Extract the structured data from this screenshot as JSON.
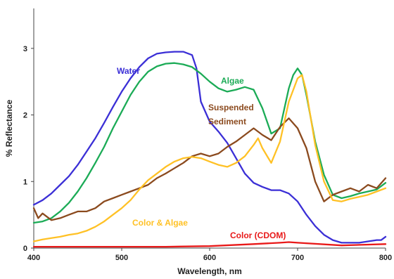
{
  "chart_data": {
    "type": "line",
    "title": "",
    "xlabel": "Wavelength, nm",
    "ylabel": "% Reflectance",
    "xlim": [
      400,
      800
    ],
    "ylim": [
      0,
      3.6
    ],
    "x_ticks": [
      400,
      500,
      600,
      700,
      800
    ],
    "y_ticks": [
      0,
      1,
      2,
      3
    ],
    "grid": false,
    "legend": "none (inline labels)",
    "series": [
      {
        "name": "Water",
        "color": "#3b2fd6",
        "x": [
          400,
          410,
          420,
          430,
          440,
          450,
          460,
          470,
          480,
          490,
          500,
          510,
          520,
          530,
          540,
          550,
          560,
          570,
          580,
          585,
          590,
          600,
          610,
          620,
          630,
          640,
          650,
          660,
          670,
          680,
          690,
          700,
          710,
          720,
          730,
          740,
          750,
          760,
          770,
          780,
          790,
          795,
          800
        ],
        "values": [
          0.65,
          0.72,
          0.82,
          0.95,
          1.08,
          1.25,
          1.45,
          1.65,
          1.88,
          2.12,
          2.35,
          2.55,
          2.72,
          2.85,
          2.92,
          2.94,
          2.95,
          2.95,
          2.9,
          2.7,
          2.2,
          1.9,
          1.75,
          1.58,
          1.35,
          1.12,
          0.98,
          0.92,
          0.87,
          0.87,
          0.82,
          0.7,
          0.5,
          0.33,
          0.2,
          0.12,
          0.08,
          0.08,
          0.08,
          0.1,
          0.12,
          0.12,
          0.17
        ]
      },
      {
        "name": "Algae",
        "color": "#1bab56",
        "x": [
          400,
          410,
          420,
          430,
          440,
          450,
          460,
          470,
          480,
          490,
          500,
          510,
          520,
          530,
          540,
          550,
          560,
          570,
          580,
          590,
          600,
          610,
          620,
          630,
          640,
          650,
          660,
          670,
          680,
          690,
          695,
          700,
          705,
          710,
          720,
          730,
          740,
          750,
          760,
          770,
          780,
          790,
          800
        ],
        "values": [
          0.38,
          0.4,
          0.45,
          0.55,
          0.68,
          0.85,
          1.05,
          1.28,
          1.52,
          1.8,
          2.05,
          2.3,
          2.5,
          2.65,
          2.73,
          2.77,
          2.78,
          2.76,
          2.72,
          2.62,
          2.5,
          2.4,
          2.35,
          2.38,
          2.42,
          2.38,
          2.1,
          1.72,
          1.8,
          2.4,
          2.6,
          2.7,
          2.6,
          2.3,
          1.6,
          1.1,
          0.8,
          0.75,
          0.78,
          0.82,
          0.85,
          0.88,
          0.98
        ]
      },
      {
        "name": "Suspended Sediment",
        "color": "#8b4a1e",
        "x": [
          400,
          405,
          410,
          420,
          430,
          440,
          450,
          460,
          470,
          480,
          490,
          500,
          510,
          520,
          530,
          540,
          550,
          560,
          570,
          580,
          590,
          600,
          610,
          620,
          630,
          640,
          650,
          660,
          670,
          680,
          690,
          700,
          710,
          720,
          730,
          740,
          750,
          760,
          770,
          780,
          790,
          800
        ],
        "values": [
          0.6,
          0.45,
          0.52,
          0.42,
          0.45,
          0.5,
          0.55,
          0.55,
          0.6,
          0.7,
          0.75,
          0.8,
          0.85,
          0.9,
          0.95,
          1.05,
          1.12,
          1.2,
          1.28,
          1.38,
          1.42,
          1.38,
          1.42,
          1.52,
          1.6,
          1.7,
          1.8,
          1.7,
          1.62,
          1.82,
          1.95,
          1.8,
          1.5,
          1.0,
          0.7,
          0.8,
          0.85,
          0.9,
          0.85,
          0.95,
          0.9,
          1.05
        ]
      },
      {
        "name": "Color & Algae",
        "color": "#ffc125",
        "x": [
          400,
          410,
          420,
          430,
          440,
          450,
          460,
          470,
          480,
          490,
          500,
          510,
          520,
          530,
          540,
          550,
          560,
          570,
          580,
          590,
          600,
          610,
          620,
          630,
          640,
          650,
          655,
          660,
          670,
          680,
          690,
          700,
          705,
          710,
          720,
          730,
          740,
          750,
          760,
          770,
          780,
          790,
          800
        ],
        "values": [
          0.1,
          0.13,
          0.15,
          0.17,
          0.2,
          0.22,
          0.26,
          0.32,
          0.4,
          0.5,
          0.6,
          0.72,
          0.88,
          1.02,
          1.12,
          1.22,
          1.3,
          1.35,
          1.37,
          1.35,
          1.3,
          1.25,
          1.22,
          1.28,
          1.38,
          1.55,
          1.65,
          1.5,
          1.28,
          1.6,
          2.2,
          2.55,
          2.6,
          2.35,
          1.55,
          1.0,
          0.72,
          0.7,
          0.74,
          0.77,
          0.8,
          0.85,
          0.9
        ]
      },
      {
        "name": "Color (CDOM)",
        "color": "#e81919",
        "x": [
          400,
          450,
          500,
          550,
          600,
          650,
          680,
          690,
          700,
          750,
          800
        ],
        "values": [
          0.02,
          0.02,
          0.02,
          0.02,
          0.03,
          0.06,
          0.08,
          0.09,
          0.08,
          0.04,
          0.06
        ]
      }
    ],
    "annotations": [
      {
        "text": "Water",
        "series": 0
      },
      {
        "text": "Algae",
        "series": 1
      },
      {
        "text": "Suspended",
        "series": 2
      },
      {
        "text": "Sediment",
        "series": 2
      },
      {
        "text": "Color & Algae",
        "series": 3
      },
      {
        "text": "Color (CDOM)",
        "series": 4
      }
    ]
  }
}
